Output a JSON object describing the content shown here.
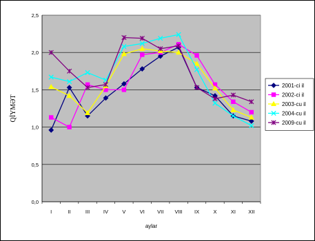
{
  "chart_data": {
    "type": "line",
    "title": "",
    "xlabel": "aylar",
    "ylabel": "QİYMƏT",
    "ylim": [
      0.0,
      2.5
    ],
    "yticks": [
      "0,0",
      "0,5",
      "1,0",
      "1,5",
      "2,0",
      "2,5"
    ],
    "ytick_values": [
      0.0,
      0.5,
      1.0,
      1.5,
      2.0,
      2.5
    ],
    "categories": [
      "I",
      "II",
      "III",
      "IV",
      "V",
      "VI",
      "VII",
      "VIII",
      "IX",
      "X",
      "XI",
      "XII"
    ],
    "grid": true,
    "legend_position": "right",
    "plot_background": "#c0c0c0",
    "series": [
      {
        "name": "2001-ci il",
        "color": "#000080",
        "marker": "diamond",
        "values": [
          0.96,
          1.53,
          1.15,
          1.39,
          1.58,
          1.78,
          1.95,
          2.07,
          1.53,
          1.42,
          1.15,
          1.08
        ]
      },
      {
        "name": "2002-ci il",
        "color": "#ff00ff",
        "marker": "square",
        "values": [
          1.13,
          1.0,
          1.57,
          1.5,
          1.5,
          1.97,
          2.0,
          2.11,
          1.96,
          1.57,
          1.34,
          1.2
        ]
      },
      {
        "name": "2003-cu il",
        "color": "#ffff00",
        "marker": "triangle",
        "values": [
          1.54,
          1.42,
          1.19,
          1.55,
          1.98,
          2.05,
          2.02,
          2.0,
          1.85,
          1.52,
          1.23,
          1.13
        ]
      },
      {
        "name": "2004-cu il",
        "color": "#00ffff",
        "marker": "x",
        "values": [
          1.67,
          1.61,
          1.73,
          1.63,
          2.08,
          2.12,
          2.19,
          2.24,
          1.77,
          1.32,
          1.15,
          1.02
        ]
      },
      {
        "name": "2009-cu il",
        "color": "#800080",
        "marker": "star",
        "values": [
          2.0,
          1.75,
          1.53,
          1.57,
          2.2,
          2.19,
          2.05,
          2.09,
          1.53,
          1.38,
          1.43,
          1.34
        ]
      }
    ]
  }
}
